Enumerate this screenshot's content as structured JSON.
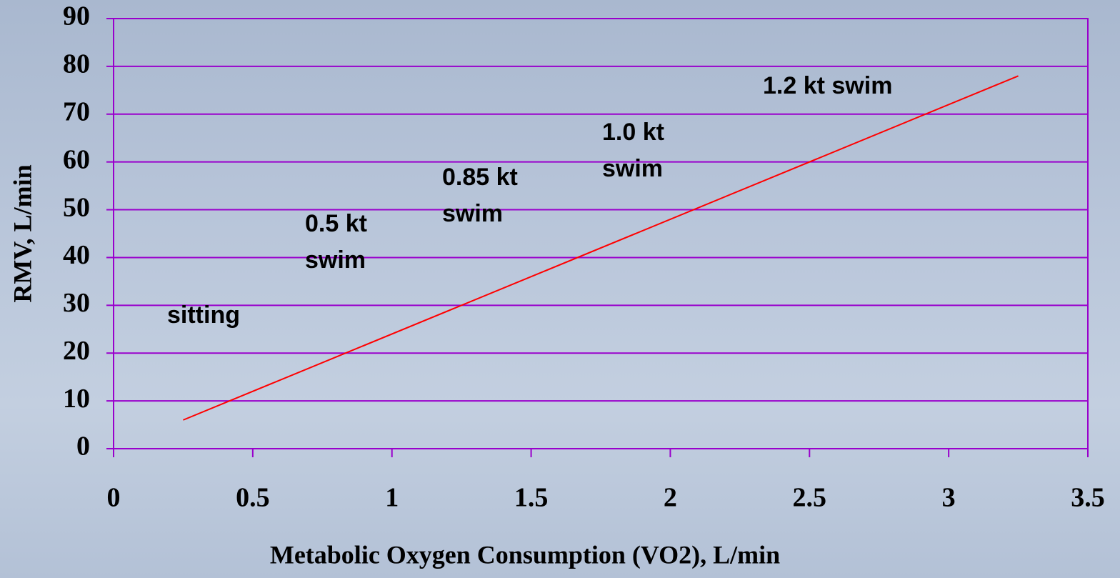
{
  "chart_data": {
    "type": "line",
    "x_label": "Metabolic Oxygen Consumption (VO2), L/min",
    "y_label": "RMV, L/min",
    "x": [
      0.25,
      3.25
    ],
    "series": [
      {
        "color": "#ff0000",
        "values": [
          6,
          78
        ]
      }
    ],
    "xlim": [
      0,
      3.5
    ],
    "xticks": [
      0,
      0.5,
      1,
      1.5,
      2,
      2.5,
      3,
      3.5
    ],
    "ylim": [
      0,
      90
    ],
    "yticks": [
      0,
      10,
      20,
      30,
      40,
      50,
      60,
      70,
      80,
      90
    ],
    "grid": true,
    "grid_color": "#9900cc",
    "annotations": [
      [
        "sitting"
      ],
      [
        "0.5 kt",
        "swim"
      ],
      [
        "0.85 kt",
        "swim"
      ],
      [
        "1.0 kt",
        "swim"
      ],
      [
        "1.2 kt swim"
      ]
    ]
  }
}
